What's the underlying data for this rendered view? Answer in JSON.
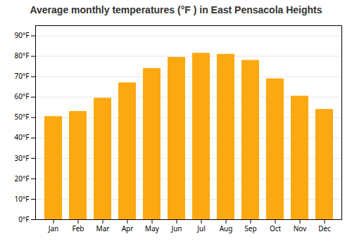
{
  "chart_data": {
    "type": "bar",
    "title": "Average monthly temperatures (°F ) in East Pensacola Heights",
    "categories": [
      "Jan",
      "Feb",
      "Mar",
      "Apr",
      "May",
      "Jun",
      "Jul",
      "Aug",
      "Sep",
      "Oct",
      "Nov",
      "Dec"
    ],
    "values": [
      50.5,
      53,
      59.5,
      67,
      74,
      79.5,
      81.5,
      81,
      78,
      69,
      60.5,
      54
    ],
    "color": "#FCA811",
    "ylim": [
      0,
      95
    ],
    "yticks": [
      {
        "value": 0,
        "label": "0°F"
      },
      {
        "value": 10,
        "label": "10°F"
      },
      {
        "value": 20,
        "label": "20°F"
      },
      {
        "value": 30,
        "label": "30°F"
      },
      {
        "value": 40,
        "label": "40°F"
      },
      {
        "value": 50,
        "label": "50°F"
      },
      {
        "value": 60,
        "label": "60°F"
      },
      {
        "value": 70,
        "label": "70°F"
      },
      {
        "value": 80,
        "label": "80°F"
      },
      {
        "value": 90,
        "label": "90°F"
      }
    ],
    "grid": true
  }
}
